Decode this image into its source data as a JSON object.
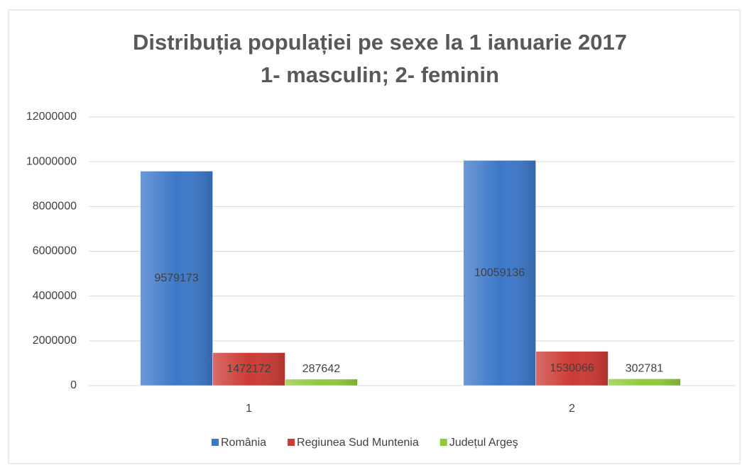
{
  "chart_data": {
    "type": "bar",
    "title": "Distribuția populației pe sexe la 1 ianuarie 2017",
    "subtitle": "1- masculin; 2- feminin",
    "categories": [
      "1",
      "2"
    ],
    "series": [
      {
        "name": "România",
        "color": "#3c78c8",
        "values": [
          9579173,
          10059136
        ]
      },
      {
        "name": "Regiunea Sud Muntenia",
        "color": "#cc3b35",
        "values": [
          1472172,
          1530066
        ]
      },
      {
        "name": "Județul Argeş",
        "color": "#8fc93a",
        "values": [
          287642,
          302781
        ]
      }
    ],
    "ylim": [
      0,
      12000000
    ],
    "yticks": [
      0,
      2000000,
      4000000,
      6000000,
      8000000,
      10000000,
      12000000
    ],
    "grid": true,
    "legend": "bottom"
  }
}
